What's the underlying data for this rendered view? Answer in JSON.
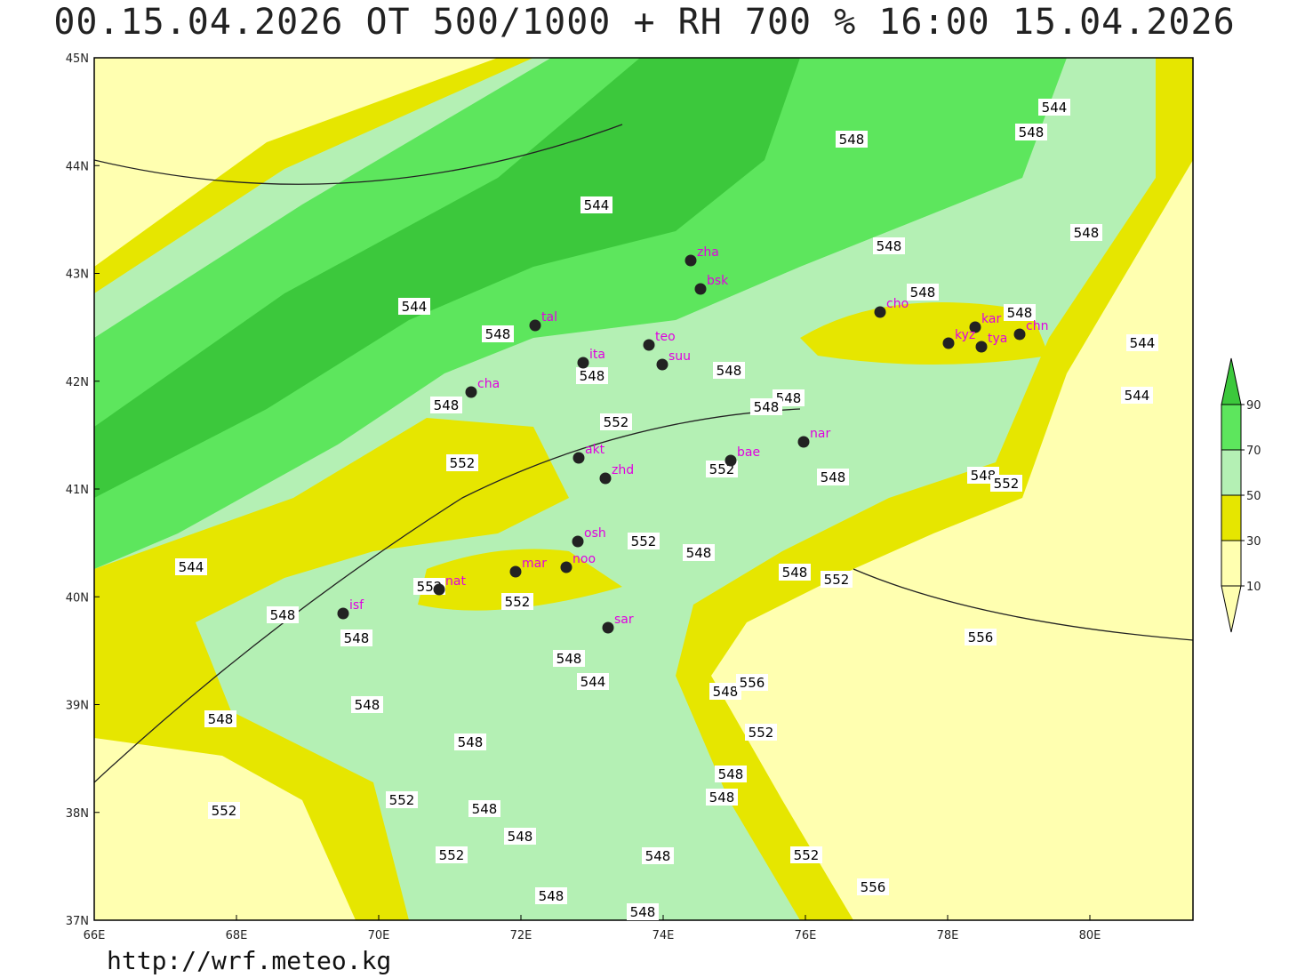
{
  "title": "00.15.04.2026 OT 500/1000 + RH 700 % 16:00 15.04.2026",
  "url": "http://wrf.meteo.kg",
  "lat_ticks": [
    "45N",
    "44N",
    "43N",
    "42N",
    "41N",
    "40N",
    "39N",
    "38N",
    "37N"
  ],
  "lon_ticks": [
    "66E",
    "68E",
    "70E",
    "72E",
    "74E",
    "76E",
    "78E",
    "80E"
  ],
  "colorbar": {
    "levels": [
      90,
      70,
      50,
      30,
      10
    ],
    "colors": [
      "#3cc83c",
      "#5de65d",
      "#b4f0b4",
      "#e6e600",
      "#ffffb0"
    ]
  },
  "stations": [
    "zha",
    "bsk",
    "cho",
    "kar",
    "kyz",
    "tya",
    "chn",
    "tal",
    "ita",
    "teo",
    "suu",
    "cha",
    "nar",
    "akt",
    "bae",
    "zhd",
    "osh",
    "mar",
    "noo",
    "nat",
    "isf",
    "sar"
  ],
  "contour_labels": [
    544,
    548,
    548,
    544,
    548,
    548,
    544,
    548,
    548,
    548,
    544,
    548,
    548,
    548,
    548,
    544,
    548,
    552,
    552,
    552,
    548,
    548,
    552,
    544,
    552,
    548,
    548,
    552,
    552,
    552,
    548,
    548,
    556,
    548,
    544,
    548,
    556,
    548,
    548,
    548,
    552,
    548,
    548,
    552,
    548,
    552,
    548,
    552,
    548,
    552,
    556,
    548,
    548
  ]
}
